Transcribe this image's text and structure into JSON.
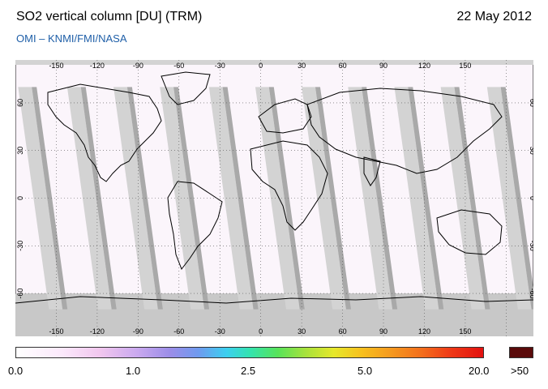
{
  "header": {
    "title": "SO2 vertical column [DU] (TRM)",
    "date": "22 May 2012",
    "credit": "OMI  –  KNMI/FMI/NASA"
  },
  "map": {
    "lon_ticks": [
      "-150",
      "-120",
      "-90",
      "-60",
      "-30",
      "0",
      "30",
      "60",
      "90",
      "120",
      "150"
    ],
    "lat_ticks": [
      "60",
      "30",
      "0",
      "-30",
      "-60"
    ],
    "colors": {
      "no_data": "#d3d3d3",
      "swath_edge": "#a9a9a9",
      "ocean_background": "#fbf5fb",
      "coast": "#000000"
    }
  },
  "colorbar": {
    "labels": [
      "0.0",
      "1.0",
      "2.5",
      "5.0",
      "20.0"
    ],
    "overflow_label": ">50",
    "overflow_color": "#5a0a0a"
  }
}
